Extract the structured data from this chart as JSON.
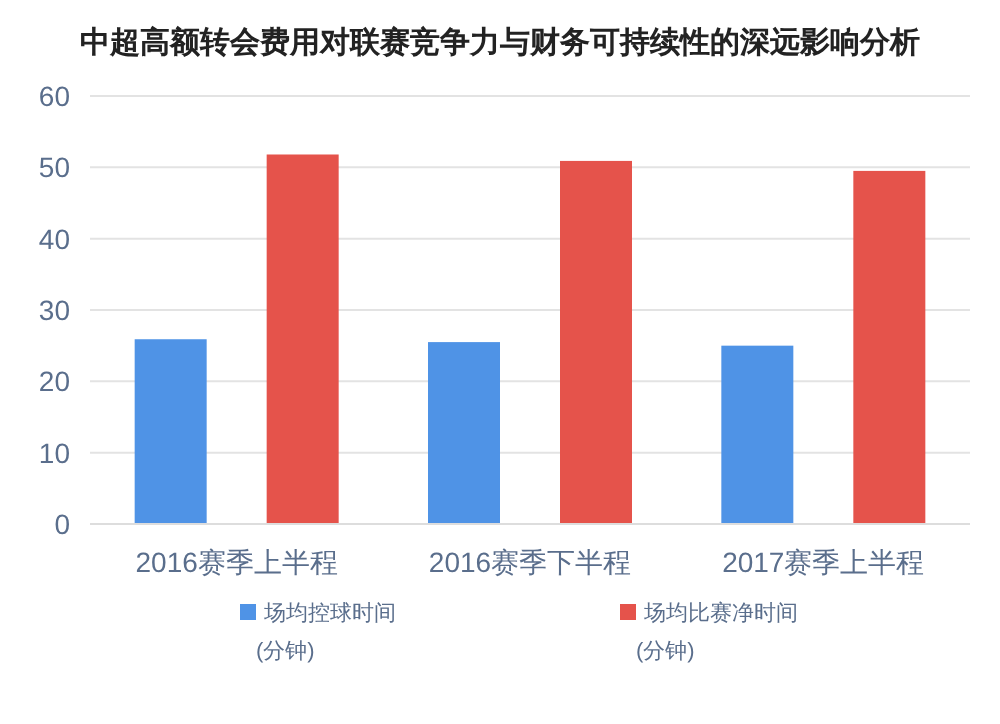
{
  "chart_data": {
    "type": "bar",
    "title": "中超高额转会费用对联赛竞争力与财务可持续性的深远影响分析",
    "categories": [
      "2016赛季上半程",
      "2016赛季下半程",
      "2017赛季上半程"
    ],
    "series": [
      {
        "name": "场均控球时间\n(分钟)",
        "color": "#4f93e6",
        "values": [
          25.9,
          25.5,
          25.0
        ]
      },
      {
        "name": "场均比赛净时间\n(分钟)",
        "color": "#e5534b",
        "values": [
          51.8,
          50.9,
          49.5
        ]
      }
    ],
    "ylim": [
      0,
      60
    ],
    "yticks": [
      0,
      10,
      20,
      30,
      40,
      50,
      60
    ],
    "grid": "y",
    "legend": "bottom"
  }
}
